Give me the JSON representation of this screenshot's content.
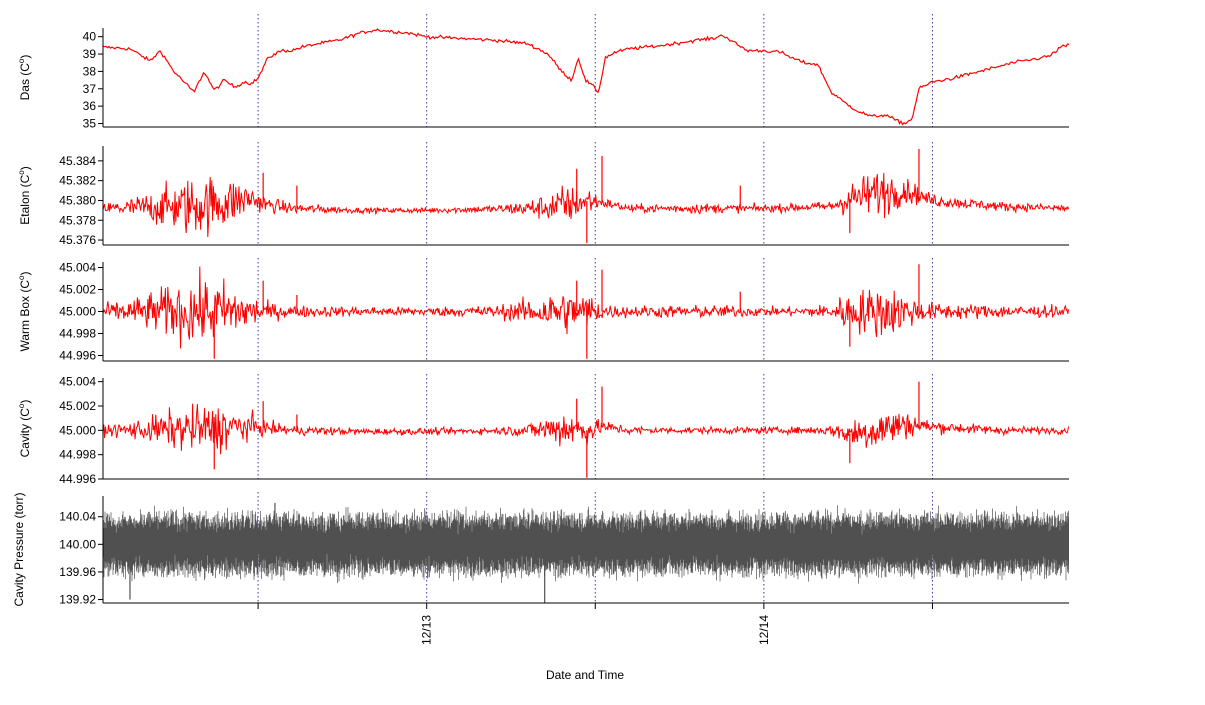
{
  "xlabel": "Date and Time",
  "x_ticks": [
    {
      "label": "",
      "x": 0.5
    },
    {
      "label": "12/13",
      "x": 1.0
    },
    {
      "label": "",
      "x": 1.5
    },
    {
      "label": "12/14",
      "x": 2.0
    },
    {
      "label": "",
      "x": 2.5
    }
  ],
  "xlim": [
    0.04,
    2.905
  ],
  "colors": {
    "temp": "#ff0000",
    "pressure": "#505050",
    "grid": "#3a3ab0"
  },
  "chart_data": [
    {
      "type": "line",
      "id": "das",
      "ylabel": "Das (C°)",
      "ylabel_main": "Das (C",
      "ylabel_sup": "o",
      "ylabel_end": ")",
      "ylim": [
        34.8,
        40.5
      ],
      "yticks": [
        {
          "v": 35,
          "label": "35"
        },
        {
          "v": 36,
          "label": "36"
        },
        {
          "v": 37,
          "label": "37"
        },
        {
          "v": 38,
          "label": "38"
        },
        {
          "v": 39,
          "label": "39"
        },
        {
          "v": 40,
          "label": "40"
        }
      ],
      "noise": 0.05,
      "x": [
        0.04,
        0.12,
        0.18,
        0.21,
        0.25,
        0.28,
        0.31,
        0.34,
        0.37,
        0.4,
        0.43,
        0.46,
        0.48,
        0.5,
        0.53,
        0.57,
        0.6,
        0.63,
        0.68,
        0.74,
        0.8,
        0.85,
        0.9,
        0.95,
        1.0,
        1.1,
        1.2,
        1.3,
        1.36,
        1.4,
        1.43,
        1.45,
        1.47,
        1.49,
        1.51,
        1.53,
        1.56,
        1.6,
        1.7,
        1.8,
        1.85,
        1.88,
        1.9,
        1.95,
        2.0,
        2.05,
        2.08,
        2.12,
        2.16,
        2.2,
        2.24,
        2.28,
        2.32,
        2.36,
        2.4,
        2.42,
        2.44,
        2.46,
        2.5,
        2.56,
        2.62,
        2.68,
        2.74,
        2.8,
        2.85,
        2.88,
        2.905
      ],
      "y": [
        39.4,
        39.3,
        38.6,
        39.2,
        38.0,
        37.4,
        36.8,
        38.0,
        36.9,
        37.5,
        37.1,
        37.4,
        37.3,
        37.6,
        38.8,
        39.2,
        39.2,
        39.4,
        39.6,
        39.8,
        40.2,
        40.4,
        40.3,
        40.2,
        40.0,
        39.9,
        39.8,
        39.6,
        39.0,
        38.0,
        37.5,
        38.8,
        37.5,
        37.2,
        36.8,
        38.8,
        39.1,
        39.3,
        39.5,
        39.8,
        39.9,
        40.1,
        39.8,
        39.2,
        39.2,
        39.1,
        38.8,
        38.5,
        38.4,
        36.8,
        36.2,
        35.7,
        35.4,
        35.5,
        35.1,
        35.0,
        35.3,
        37.0,
        37.4,
        37.6,
        37.9,
        38.2,
        38.5,
        38.7,
        38.9,
        39.4,
        39.5
      ],
      "spikes": []
    },
    {
      "type": "line",
      "id": "etalon",
      "ylabel": "Etalon (C°)",
      "ylabel_main": "Etalon (C",
      "ylabel_sup": "o",
      "ylabel_end": ")",
      "ylim": [
        45.3755,
        45.3855
      ],
      "yticks": [
        {
          "v": 45.376,
          "label": "45.376"
        },
        {
          "v": 45.378,
          "label": "45.378"
        },
        {
          "v": 45.38,
          "label": "45.380"
        },
        {
          "v": 45.382,
          "label": "45.382"
        },
        {
          "v": 45.384,
          "label": "45.384"
        }
      ],
      "baseline": 45.3792,
      "noise_x": [
        0.04,
        0.12,
        0.22,
        0.3,
        0.4,
        0.5,
        0.52,
        0.6,
        0.8,
        1.0,
        1.2,
        1.3,
        1.36,
        1.4,
        1.44,
        1.46,
        1.48,
        1.5,
        1.52,
        1.56,
        1.7,
        1.8,
        1.9,
        2.0,
        2.1,
        2.2,
        2.24,
        2.28,
        2.32,
        2.36,
        2.4,
        2.44,
        2.48,
        2.6,
        2.8,
        2.905
      ],
      "noise_a": [
        0.0004,
        0.0007,
        0.0015,
        0.0022,
        0.002,
        0.0008,
        0.0006,
        0.0004,
        0.0002,
        0.0002,
        0.0003,
        0.0006,
        0.001,
        0.0016,
        0.0012,
        0.0008,
        0.0012,
        0.0006,
        0.0004,
        0.0003,
        0.0003,
        0.0004,
        0.0003,
        0.0003,
        0.0003,
        0.0004,
        0.001,
        0.0014,
        0.0016,
        0.0018,
        0.0012,
        0.0008,
        0.0005,
        0.0004,
        0.0003,
        0.0003
      ],
      "offset_x": [
        0.04,
        0.3,
        0.4,
        0.48,
        0.52,
        0.6,
        0.8,
        1.0,
        1.3,
        1.4,
        1.48,
        1.52,
        1.6,
        2.0,
        2.2,
        2.26,
        2.34,
        2.42,
        2.5,
        2.7,
        2.905
      ],
      "offset_y": [
        0.0,
        0.0002,
        0.0006,
        0.001,
        0.0004,
        0.0,
        -0.0002,
        -0.0002,
        0.0,
        0.0002,
        0.0008,
        0.0006,
        0.0,
        0.0,
        0.0002,
        0.001,
        0.0016,
        0.0018,
        0.0008,
        0.0002,
        0.0
      ],
      "spikes": [
        [
          0.515,
          45.3828
        ],
        [
          0.615,
          45.3815
        ],
        [
          1.445,
          45.3832
        ],
        [
          1.475,
          45.3757
        ],
        [
          1.52,
          45.3845
        ],
        [
          1.93,
          45.3815
        ],
        [
          2.255,
          45.3767
        ],
        [
          2.46,
          45.3852
        ]
      ]
    },
    {
      "type": "line",
      "id": "warmbox",
      "ylabel": "Warm Box (C°)",
      "ylabel_main": "Warm Box (C",
      "ylabel_sup": "o",
      "ylabel_end": ")",
      "ylim": [
        44.9955,
        45.0045
      ],
      "yticks": [
        {
          "v": 44.996,
          "label": "44.996"
        },
        {
          "v": 44.998,
          "label": "44.998"
        },
        {
          "v": 45.0,
          "label": "45.000"
        },
        {
          "v": 45.002,
          "label": "45.002"
        },
        {
          "v": 45.004,
          "label": "45.004"
        }
      ],
      "baseline": 45.0,
      "noise_x": [
        0.04,
        0.12,
        0.22,
        0.3,
        0.4,
        0.5,
        0.52,
        0.6,
        0.8,
        1.0,
        1.2,
        1.3,
        1.36,
        1.4,
        1.44,
        1.46,
        1.48,
        1.5,
        1.52,
        1.56,
        1.7,
        1.8,
        1.9,
        2.0,
        2.1,
        2.2,
        2.24,
        2.28,
        2.32,
        2.36,
        2.4,
        2.44,
        2.48,
        2.6,
        2.8,
        2.905
      ],
      "noise_a": [
        0.0005,
        0.0008,
        0.0016,
        0.0022,
        0.002,
        0.0009,
        0.0006,
        0.0004,
        0.0003,
        0.0003,
        0.0004,
        0.0008,
        0.0012,
        0.0016,
        0.0012,
        0.001,
        0.0014,
        0.0008,
        0.0006,
        0.0004,
        0.0004,
        0.0004,
        0.0004,
        0.0003,
        0.0003,
        0.0005,
        0.0012,
        0.0014,
        0.0016,
        0.0018,
        0.0014,
        0.001,
        0.0006,
        0.0005,
        0.0004,
        0.0004
      ],
      "offset_x": [
        0.04,
        2.905
      ],
      "offset_y": [
        0.0,
        0.0
      ],
      "spikes": [
        [
          0.37,
          44.9957
        ],
        [
          0.515,
          45.0028
        ],
        [
          0.615,
          45.0015
        ],
        [
          1.445,
          45.0028
        ],
        [
          1.475,
          44.9957
        ],
        [
          1.52,
          45.0038
        ],
        [
          1.93,
          45.0018
        ],
        [
          2.255,
          44.9968
        ],
        [
          2.46,
          45.0043
        ]
      ]
    },
    {
      "type": "line",
      "id": "cavity",
      "ylabel": "Cavity (C°)",
      "ylabel_main": "Cavity (C",
      "ylabel_sup": "o",
      "ylabel_end": ")",
      "ylim": [
        44.996,
        45.0043
      ],
      "yticks": [
        {
          "v": 44.996,
          "label": "44.996"
        },
        {
          "v": 44.998,
          "label": "44.998"
        },
        {
          "v": 45.0,
          "label": "45.000"
        },
        {
          "v": 45.002,
          "label": "45.002"
        },
        {
          "v": 45.004,
          "label": "45.004"
        }
      ],
      "baseline": 45.0,
      "noise_x": [
        0.04,
        0.12,
        0.22,
        0.3,
        0.4,
        0.5,
        0.52,
        0.6,
        0.8,
        1.0,
        1.2,
        1.3,
        1.36,
        1.4,
        1.44,
        1.46,
        1.48,
        1.5,
        1.52,
        1.56,
        1.7,
        1.8,
        1.9,
        2.0,
        2.1,
        2.2,
        2.24,
        2.28,
        2.32,
        2.36,
        2.4,
        2.44,
        2.48,
        2.6,
        2.8,
        2.905
      ],
      "noise_a": [
        0.0003,
        0.0005,
        0.001,
        0.0014,
        0.0014,
        0.0006,
        0.0004,
        0.0003,
        0.0002,
        0.0002,
        0.0002,
        0.0004,
        0.0008,
        0.0012,
        0.001,
        0.0008,
        0.001,
        0.0005,
        0.0004,
        0.0003,
        0.0002,
        0.0002,
        0.0002,
        0.0002,
        0.0002,
        0.0003,
        0.0007,
        0.001,
        0.0012,
        0.0012,
        0.001,
        0.0007,
        0.0004,
        0.0003,
        0.0002,
        0.0002
      ],
      "offset_x": [
        0.04,
        0.3,
        0.4,
        0.48,
        0.52,
        0.6,
        0.8,
        1.0,
        1.3,
        1.4,
        1.48,
        1.52,
        1.6,
        2.0,
        2.2,
        2.26,
        2.34,
        2.42,
        2.5,
        2.7,
        2.905
      ],
      "offset_y": [
        0.0,
        0.0001,
        0.0002,
        0.0003,
        0.0002,
        0.0,
        -0.0001,
        -0.0001,
        0.0,
        0.0002,
        0.0,
        0.0003,
        0.0,
        0.0,
        0.0,
        -0.0003,
        0.0001,
        0.0005,
        0.0003,
        0.0,
        0.0
      ],
      "spikes": [
        [
          0.37,
          44.9968
        ],
        [
          0.515,
          45.0024
        ],
        [
          0.615,
          45.0013
        ],
        [
          1.445,
          45.0026
        ],
        [
          1.475,
          44.9961
        ],
        [
          1.52,
          45.0036
        ],
        [
          2.255,
          44.9973
        ],
        [
          2.46,
          45.004
        ]
      ]
    },
    {
      "type": "line",
      "id": "pressure",
      "ylabel": "Cavity Pressure (torr)",
      "ylabel_main": "Cavity Pressure (torr)",
      "ylabel_sup": "",
      "ylabel_end": "",
      "ylim": [
        139.915,
        140.07
      ],
      "yticks": [
        {
          "v": 139.92,
          "label": "139.92"
        },
        {
          "v": 139.96,
          "label": "139.96"
        },
        {
          "v": 140.0,
          "label": "140.00"
        },
        {
          "v": 140.04,
          "label": "140.04"
        }
      ],
      "baseline": 140.0,
      "band": 0.035,
      "spikes": [
        [
          0.12,
          139.92
        ],
        [
          0.55,
          140.06
        ],
        [
          1.35,
          139.915
        ]
      ]
    }
  ]
}
